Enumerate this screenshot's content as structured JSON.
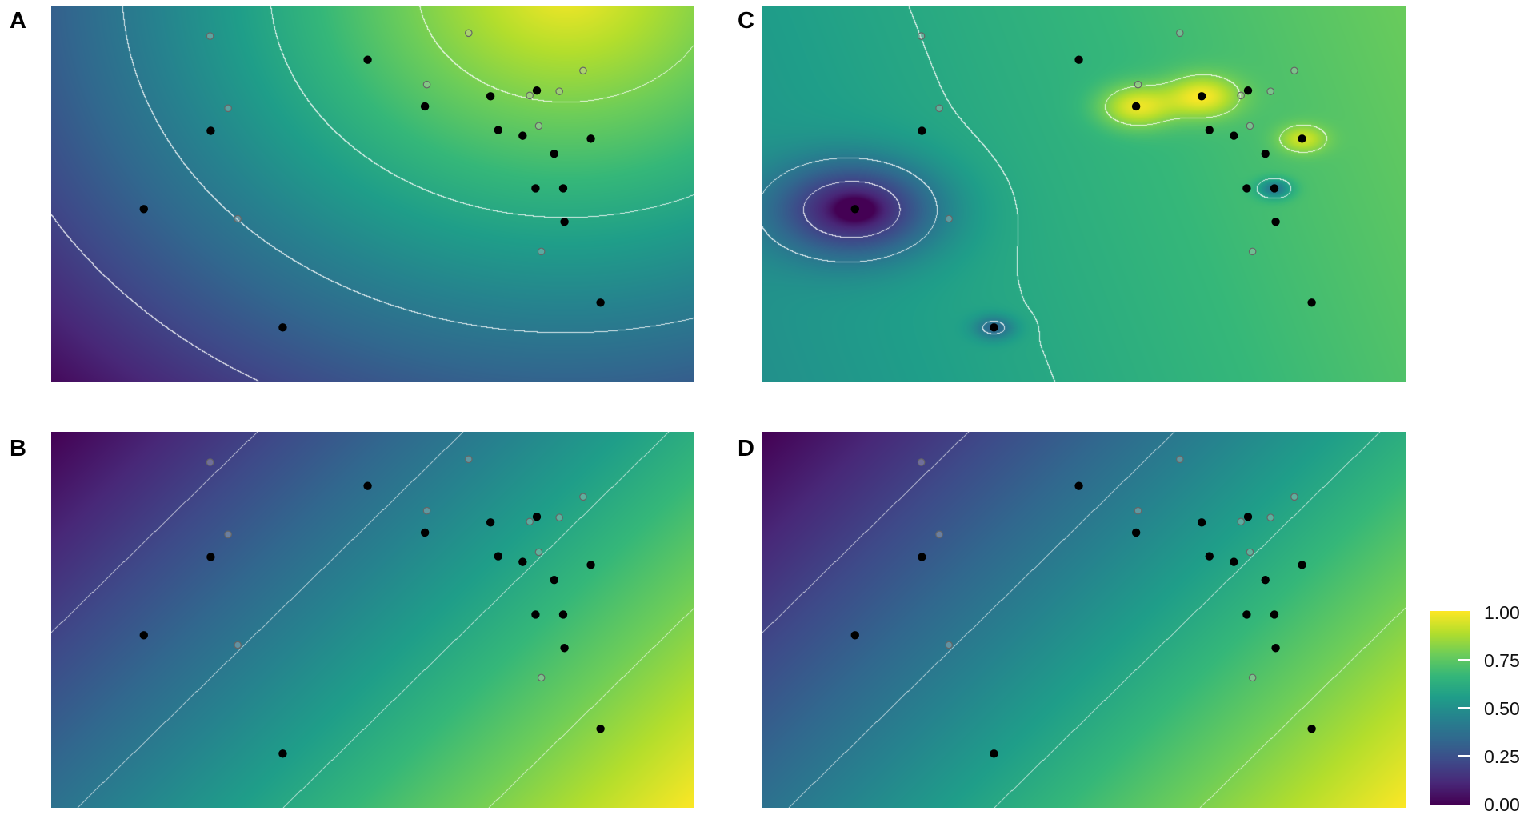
{
  "chart_data": {
    "type": "heatmap",
    "panels": [
      {
        "label": "A",
        "field": "radial"
      },
      {
        "label": "B",
        "field": "linear"
      },
      {
        "label": "C",
        "field": "local"
      },
      {
        "label": "D",
        "field": "linear"
      }
    ],
    "xlim": [
      0,
      100
    ],
    "ylim": [
      0,
      100
    ],
    "contour_levels": [
      0.2,
      0.4,
      0.6,
      0.8
    ],
    "colormap": "viridis",
    "points_filled": [
      [
        49.2,
        85.6
      ],
      [
        58.1,
        73.2
      ],
      [
        68.3,
        75.9
      ],
      [
        75.5,
        77.4
      ],
      [
        69.5,
        66.9
      ],
      [
        73.3,
        65.4
      ],
      [
        83.9,
        64.6
      ],
      [
        78.2,
        60.6
      ],
      [
        75.3,
        51.4
      ],
      [
        79.6,
        51.4
      ],
      [
        79.8,
        42.5
      ],
      [
        24.8,
        66.7
      ],
      [
        14.4,
        45.9
      ],
      [
        36.0,
        14.4
      ],
      [
        85.4,
        21.0
      ]
    ],
    "points_open": [
      [
        24.7,
        91.9
      ],
      [
        64.9,
        92.7
      ],
      [
        58.4,
        79.0
      ],
      [
        74.4,
        76.1
      ],
      [
        79.0,
        77.2
      ],
      [
        82.7,
        82.7
      ],
      [
        75.8,
        68.0
      ],
      [
        27.5,
        72.7
      ],
      [
        29.0,
        43.3
      ],
      [
        76.2,
        34.6
      ]
    ],
    "colorbar": {
      "range": [
        0,
        1
      ],
      "ticks": [
        "0.00",
        "0.25",
        "0.50",
        "0.75",
        "1.00"
      ]
    }
  }
}
